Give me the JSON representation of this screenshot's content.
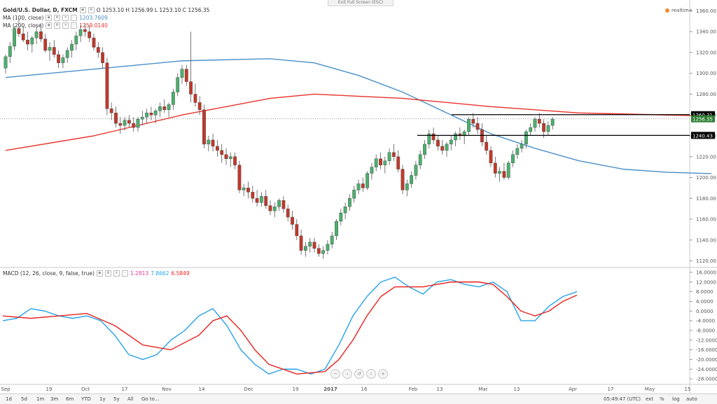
{
  "window": {
    "exit_fullscreen": "Exit Full Screen (ESC)",
    "realtime_label": "realtime"
  },
  "legend": {
    "symbol_line": "Gold/U.S. Dollar, D, FXCM",
    "ohlc": "O 1253.10 H 1256.99 L 1253.10 C 1256.35",
    "ma100_label": "MA (100, close)",
    "ma100_value": "1203.7609",
    "ma200_label": "MA (200, close)",
    "ma200_value": "1259.0140",
    "macd_label": "MACD (12, 26, close, 9, false, true)",
    "macd_hist": "1.2813",
    "macd_line": "7.8662",
    "macd_signal": "6.5849"
  },
  "colors": {
    "up": "#26a69a",
    "up_fill": "#4caf6e",
    "down": "#c0392b",
    "ma100": "#4a90c8",
    "ma200": "#e8312a",
    "macd_line": "#29a3e8",
    "signal_line": "#e8231f",
    "price_label_bg": "#2e7d32"
  },
  "bottom_bar": {
    "timeframes": [
      "1d",
      "5d",
      "1m",
      "3m",
      "6m",
      "YTD",
      "1y",
      "5y",
      "All",
      "Go to..."
    ],
    "clock": "05:49:47 (UTC)",
    "options": [
      "ext",
      "%",
      "log",
      "auto"
    ]
  },
  "x_axis_labels": [
    "Sep",
    "19",
    "Oct",
    "17",
    "Nov",
    "14",
    "Dec",
    "19",
    "2017",
    "16",
    "Feb",
    "13",
    "Mar",
    "13",
    "Apr",
    "17",
    "May",
    "15"
  ],
  "price_axis_ticks": [
    "1360.00",
    "1340.00",
    "1320.00",
    "1300.00",
    "1280.00",
    "1260.00",
    "1240.00",
    "1220.00",
    "1200.00",
    "1180.00",
    "1160.00",
    "1140.00",
    "1120.00"
  ],
  "macd_axis_ticks": [
    "16.0000",
    "12.0000",
    "8.0000",
    "4.0000",
    "0.0000",
    "-4.0000",
    "-8.0000",
    "-12.0000",
    "-16.0000",
    "-20.0000",
    "-24.0000",
    "-28.0000"
  ],
  "price_tags": {
    "resistance": "1260.31",
    "current": "1256.35",
    "support": "1240.43"
  },
  "chart_data": [
    {
      "type": "candlestick",
      "symbol": "Gold/U.S. Dollar",
      "timeframe": "D",
      "ylim": [
        1115,
        1365
      ],
      "horizontal_lines": [
        1260.31,
        1240.43
      ],
      "candles": [
        [
          1305,
          1318,
          1300,
          1316
        ],
        [
          1316,
          1330,
          1310,
          1326
        ],
        [
          1326,
          1345,
          1322,
          1343
        ],
        [
          1343,
          1352,
          1335,
          1338
        ],
        [
          1338,
          1345,
          1330,
          1332
        ],
        [
          1332,
          1340,
          1322,
          1328
        ],
        [
          1328,
          1336,
          1320,
          1334
        ],
        [
          1334,
          1345,
          1328,
          1340
        ],
        [
          1340,
          1348,
          1330,
          1333
        ],
        [
          1333,
          1338,
          1320,
          1322
        ],
        [
          1322,
          1330,
          1312,
          1325
        ],
        [
          1325,
          1332,
          1315,
          1318
        ],
        [
          1318,
          1322,
          1305,
          1310
        ],
        [
          1310,
          1318,
          1305,
          1315
        ],
        [
          1315,
          1325,
          1310,
          1322
        ],
        [
          1322,
          1332,
          1315,
          1328
        ],
        [
          1328,
          1340,
          1322,
          1336
        ],
        [
          1336,
          1346,
          1330,
          1342
        ],
        [
          1342,
          1348,
          1335,
          1340
        ],
        [
          1340,
          1346,
          1330,
          1334
        ],
        [
          1334,
          1338,
          1322,
          1325
        ],
        [
          1325,
          1330,
          1315,
          1320
        ],
        [
          1320,
          1325,
          1305,
          1310
        ],
        [
          1310,
          1315,
          1260,
          1266
        ],
        [
          1266,
          1272,
          1255,
          1262
        ],
        [
          1262,
          1268,
          1248,
          1252
        ],
        [
          1252,
          1258,
          1242,
          1250
        ],
        [
          1250,
          1258,
          1245,
          1255
        ],
        [
          1255,
          1260,
          1248,
          1252
        ],
        [
          1252,
          1258,
          1244,
          1248
        ],
        [
          1248,
          1258,
          1244,
          1256
        ],
        [
          1256,
          1264,
          1250,
          1258
        ],
        [
          1258,
          1266,
          1252,
          1262
        ],
        [
          1262,
          1268,
          1255,
          1260
        ],
        [
          1260,
          1266,
          1252,
          1264
        ],
        [
          1264,
          1272,
          1258,
          1268
        ],
        [
          1268,
          1275,
          1262,
          1265
        ],
        [
          1265,
          1272,
          1258,
          1270
        ],
        [
          1270,
          1285,
          1265,
          1282
        ],
        [
          1282,
          1300,
          1278,
          1296
        ],
        [
          1296,
          1308,
          1290,
          1304
        ],
        [
          1304,
          1308,
          1288,
          1292
        ],
        [
          1292,
          1340,
          1272,
          1280
        ],
        [
          1280,
          1290,
          1268,
          1272
        ],
        [
          1272,
          1278,
          1260,
          1265
        ],
        [
          1265,
          1270,
          1228,
          1232
        ],
        [
          1232,
          1240,
          1225,
          1236
        ],
        [
          1236,
          1242,
          1225,
          1230
        ],
        [
          1230,
          1236,
          1220,
          1226
        ],
        [
          1226,
          1232,
          1214,
          1222
        ],
        [
          1222,
          1228,
          1212,
          1218
        ],
        [
          1218,
          1224,
          1210,
          1220
        ],
        [
          1220,
          1224,
          1208,
          1212
        ],
        [
          1212,
          1216,
          1185,
          1188
        ],
        [
          1188,
          1194,
          1182,
          1190
        ],
        [
          1190,
          1196,
          1180,
          1186
        ],
        [
          1186,
          1192,
          1176,
          1180
        ],
        [
          1180,
          1188,
          1172,
          1176
        ],
        [
          1176,
          1186,
          1172,
          1182
        ],
        [
          1182,
          1188,
          1170,
          1173
        ],
        [
          1173,
          1178,
          1164,
          1168
        ],
        [
          1168,
          1176,
          1162,
          1172
        ],
        [
          1172,
          1180,
          1168,
          1178
        ],
        [
          1178,
          1182,
          1166,
          1170
        ],
        [
          1170,
          1174,
          1158,
          1162
        ],
        [
          1162,
          1168,
          1150,
          1155
        ],
        [
          1155,
          1160,
          1140,
          1144
        ],
        [
          1144,
          1150,
          1126,
          1130
        ],
        [
          1130,
          1138,
          1124,
          1134
        ],
        [
          1134,
          1142,
          1128,
          1138
        ],
        [
          1138,
          1142,
          1128,
          1132
        ],
        [
          1132,
          1136,
          1124,
          1127
        ],
        [
          1127,
          1134,
          1122,
          1130
        ],
        [
          1130,
          1140,
          1126,
          1136
        ],
        [
          1136,
          1148,
          1132,
          1144
        ],
        [
          1144,
          1160,
          1140,
          1158
        ],
        [
          1158,
          1170,
          1154,
          1166
        ],
        [
          1166,
          1176,
          1160,
          1172
        ],
        [
          1172,
          1184,
          1168,
          1180
        ],
        [
          1180,
          1192,
          1176,
          1188
        ],
        [
          1188,
          1198,
          1184,
          1194
        ],
        [
          1194,
          1200,
          1186,
          1190
        ],
        [
          1190,
          1206,
          1188,
          1204
        ],
        [
          1204,
          1214,
          1198,
          1210
        ],
        [
          1210,
          1222,
          1206,
          1218
        ],
        [
          1218,
          1224,
          1208,
          1212
        ],
        [
          1212,
          1220,
          1204,
          1216
        ],
        [
          1216,
          1228,
          1212,
          1224
        ],
        [
          1224,
          1232,
          1216,
          1220
        ],
        [
          1220,
          1226,
          1205,
          1208
        ],
        [
          1208,
          1212,
          1184,
          1188
        ],
        [
          1188,
          1198,
          1182,
          1194
        ],
        [
          1194,
          1206,
          1190,
          1202
        ],
        [
          1202,
          1216,
          1198,
          1212
        ],
        [
          1212,
          1226,
          1208,
          1222
        ],
        [
          1222,
          1236,
          1218,
          1232
        ],
        [
          1232,
          1246,
          1228,
          1242
        ],
        [
          1242,
          1248,
          1232,
          1236
        ],
        [
          1236,
          1240,
          1226,
          1230
        ],
        [
          1230,
          1236,
          1222,
          1226
        ],
        [
          1226,
          1234,
          1220,
          1232
        ],
        [
          1232,
          1240,
          1226,
          1236
        ],
        [
          1236,
          1244,
          1230,
          1242
        ],
        [
          1242,
          1248,
          1236,
          1240
        ],
        [
          1240,
          1246,
          1232,
          1244
        ],
        [
          1244,
          1258,
          1240,
          1256
        ],
        [
          1256,
          1262,
          1248,
          1252
        ],
        [
          1252,
          1258,
          1242,
          1246
        ],
        [
          1246,
          1252,
          1230,
          1234
        ],
        [
          1234,
          1240,
          1222,
          1226
        ],
        [
          1226,
          1230,
          1210,
          1214
        ],
        [
          1214,
          1220,
          1200,
          1204
        ],
        [
          1204,
          1210,
          1196,
          1206
        ],
        [
          1206,
          1214,
          1198,
          1200
        ],
        [
          1200,
          1216,
          1198,
          1214
        ],
        [
          1214,
          1226,
          1210,
          1222
        ],
        [
          1222,
          1232,
          1218,
          1228
        ],
        [
          1228,
          1236,
          1224,
          1232
        ],
        [
          1232,
          1246,
          1228,
          1244
        ],
        [
          1244,
          1252,
          1240,
          1248
        ],
        [
          1248,
          1258,
          1244,
          1256
        ],
        [
          1256,
          1262,
          1248,
          1252
        ],
        [
          1252,
          1256,
          1238,
          1244
        ],
        [
          1244,
          1254,
          1240,
          1250
        ],
        [
          1250,
          1258,
          1246,
          1256
        ]
      ],
      "ma100": [
        [
          0,
          1296
        ],
        [
          20,
          1304
        ],
        [
          40,
          1312
        ],
        [
          60,
          1314
        ],
        [
          70,
          1310
        ],
        [
          80,
          1298
        ],
        [
          90,
          1282
        ],
        [
          100,
          1262
        ],
        [
          110,
          1242
        ],
        [
          120,
          1228
        ],
        [
          130,
          1216
        ],
        [
          140,
          1208
        ],
        [
          150,
          1205
        ],
        [
          160,
          1203.76
        ]
      ],
      "ma200": [
        [
          0,
          1226
        ],
        [
          20,
          1240
        ],
        [
          40,
          1260
        ],
        [
          60,
          1276
        ],
        [
          70,
          1280
        ],
        [
          90,
          1276
        ],
        [
          110,
          1268
        ],
        [
          130,
          1262
        ],
        [
          150,
          1260
        ],
        [
          160,
          1259.01
        ]
      ]
    },
    {
      "type": "line",
      "title": "MACD (12, 26, close, 9, false, true)",
      "ylim": [
        -30,
        18
      ],
      "series": [
        {
          "name": "MACD",
          "points": [
            [
              0,
              -4
            ],
            [
              4,
              -3
            ],
            [
              8,
              1
            ],
            [
              12,
              0
            ],
            [
              16,
              -2
            ],
            [
              20,
              -3
            ],
            [
              24,
              -2
            ],
            [
              28,
              -4
            ],
            [
              32,
              -10
            ],
            [
              36,
              -18
            ],
            [
              40,
              -20
            ],
            [
              44,
              -18
            ],
            [
              48,
              -12
            ],
            [
              52,
              -8
            ],
            [
              56,
              -2
            ],
            [
              60,
              1
            ],
            [
              64,
              -6
            ],
            [
              68,
              -16
            ],
            [
              72,
              -22
            ],
            [
              76,
              -26
            ],
            [
              80,
              -24
            ],
            [
              84,
              -24
            ],
            [
              88,
              -26
            ],
            [
              92,
              -24
            ],
            [
              96,
              -14
            ],
            [
              100,
              -2
            ],
            [
              104,
              6
            ],
            [
              108,
              12
            ],
            [
              112,
              14
            ],
            [
              116,
              10
            ],
            [
              120,
              7
            ],
            [
              124,
              12
            ],
            [
              128,
              13
            ],
            [
              132,
              11
            ],
            [
              136,
              10
            ],
            [
              140,
              12
            ],
            [
              144,
              8
            ],
            [
              148,
              -4
            ],
            [
              152,
              -4
            ],
            [
              156,
              2
            ],
            [
              160,
              6
            ],
            [
              164,
              8
            ]
          ]
        },
        {
          "name": "Signal",
          "points": [
            [
              0,
              -2
            ],
            [
              8,
              -3
            ],
            [
              16,
              -2
            ],
            [
              24,
              -1
            ],
            [
              32,
              -6
            ],
            [
              40,
              -14
            ],
            [
              48,
              -16
            ],
            [
              56,
              -10
            ],
            [
              60,
              -4
            ],
            [
              64,
              -2
            ],
            [
              68,
              -8
            ],
            [
              72,
              -16
            ],
            [
              76,
              -22
            ],
            [
              84,
              -26
            ],
            [
              92,
              -25
            ],
            [
              96,
              -20
            ],
            [
              100,
              -12
            ],
            [
              104,
              -2
            ],
            [
              108,
              6
            ],
            [
              112,
              10
            ],
            [
              120,
              10
            ],
            [
              128,
              12
            ],
            [
              136,
              12
            ],
            [
              140,
              11
            ],
            [
              144,
              6
            ],
            [
              148,
              0
            ],
            [
              152,
              -2
            ],
            [
              156,
              0
            ],
            [
              160,
              4
            ],
            [
              164,
              6.58
            ]
          ]
        }
      ]
    }
  ]
}
